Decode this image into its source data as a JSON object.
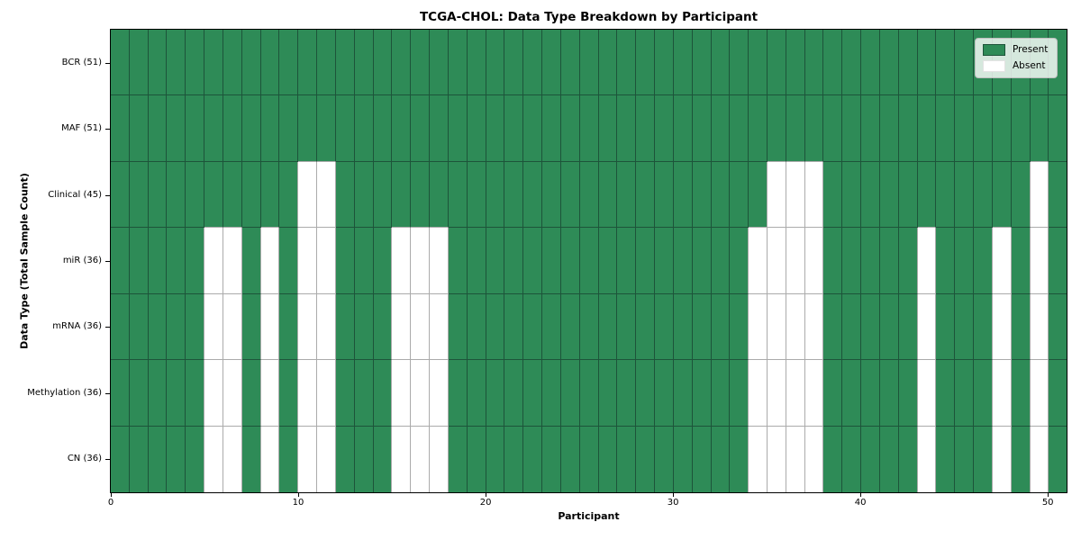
{
  "chart_data": {
    "type": "heatmap",
    "title": "TCGA-CHOL: Data Type Breakdown by Participant",
    "xlabel": "Participant",
    "ylabel": "Data Type (Total Sample Count)",
    "n_participants": 51,
    "xlim": [
      0,
      51
    ],
    "x_ticks": [
      0,
      10,
      20,
      30,
      40,
      50
    ],
    "grid": true,
    "legend": {
      "position": "upper right",
      "entries": [
        {
          "label": "Present",
          "color": "#2e8b57"
        },
        {
          "label": "Absent",
          "color": "#ffffff"
        }
      ]
    },
    "colors": {
      "present": "#2e8b57",
      "absent": "#ffffff",
      "grid_on_green": "#1d543a",
      "grid_on_white": "#ababab",
      "axis_border": "#000000"
    },
    "rows": [
      {
        "label": "BCR (51)",
        "total_samples": 51,
        "absent_participants": []
      },
      {
        "label": "MAF (51)",
        "total_samples": 51,
        "absent_participants": []
      },
      {
        "label": "Clinical (45)",
        "total_samples": 45,
        "absent_participants": [
          10,
          11,
          35,
          36,
          37,
          49
        ]
      },
      {
        "label": "miR (36)",
        "total_samples": 36,
        "absent_participants": [
          5,
          6,
          8,
          10,
          11,
          15,
          16,
          17,
          34,
          35,
          36,
          37,
          43,
          47,
          49
        ]
      },
      {
        "label": "mRNA (36)",
        "total_samples": 36,
        "absent_participants": [
          5,
          6,
          8,
          10,
          11,
          15,
          16,
          17,
          34,
          35,
          36,
          37,
          43,
          47,
          49
        ]
      },
      {
        "label": "Methylation (36)",
        "total_samples": 36,
        "absent_participants": [
          5,
          6,
          8,
          10,
          11,
          15,
          16,
          17,
          34,
          35,
          36,
          37,
          43,
          47,
          49
        ]
      },
      {
        "label": "CN (36)",
        "total_samples": 36,
        "absent_participants": [
          5,
          6,
          8,
          10,
          11,
          15,
          16,
          17,
          34,
          35,
          36,
          37,
          43,
          47,
          49
        ]
      }
    ]
  }
}
